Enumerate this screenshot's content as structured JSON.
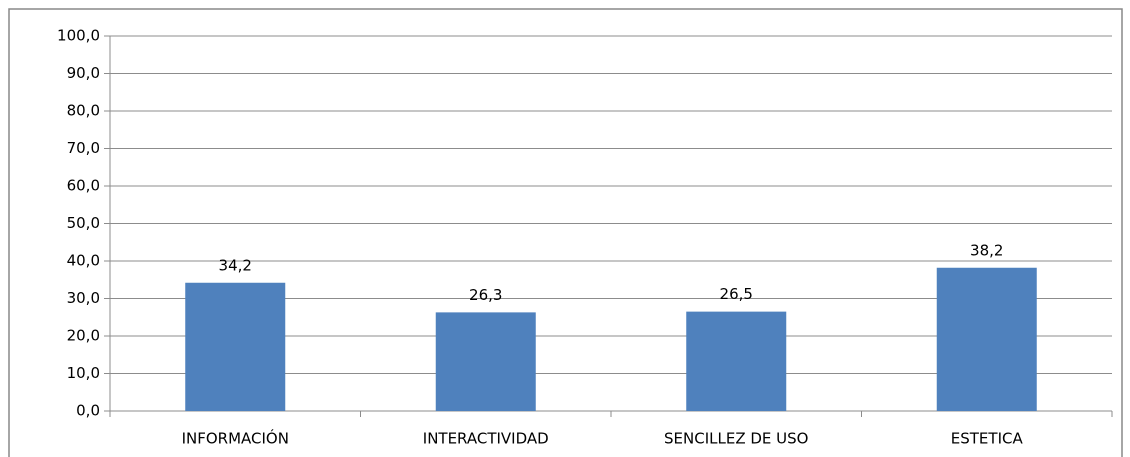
{
  "chart_data": {
    "type": "bar",
    "categories": [
      "INFORMACIÓN",
      "INTERACTIVIDAD",
      "SENCILLEZ DE USO",
      "ESTETICA"
    ],
    "values": [
      34.2,
      26.3,
      26.5,
      38.2
    ],
    "value_labels": [
      "34,2",
      "26,3",
      "26,5",
      "38,2"
    ],
    "color": "#4f81bd",
    "ylim": [
      0,
      100
    ],
    "yticks": [
      {
        "value": 0,
        "label": "0,0"
      },
      {
        "value": 10,
        "label": "10,0"
      },
      {
        "value": 20,
        "label": "20,0"
      },
      {
        "value": 30,
        "label": "30,0"
      },
      {
        "value": 40,
        "label": "40,0"
      },
      {
        "value": 50,
        "label": "50,0"
      },
      {
        "value": 60,
        "label": "60,0"
      },
      {
        "value": 70,
        "label": "70,0"
      },
      {
        "value": 80,
        "label": "80,0"
      },
      {
        "value": 90,
        "label": "90,0"
      },
      {
        "value": 100,
        "label": "100,0"
      }
    ],
    "grid": true
  }
}
